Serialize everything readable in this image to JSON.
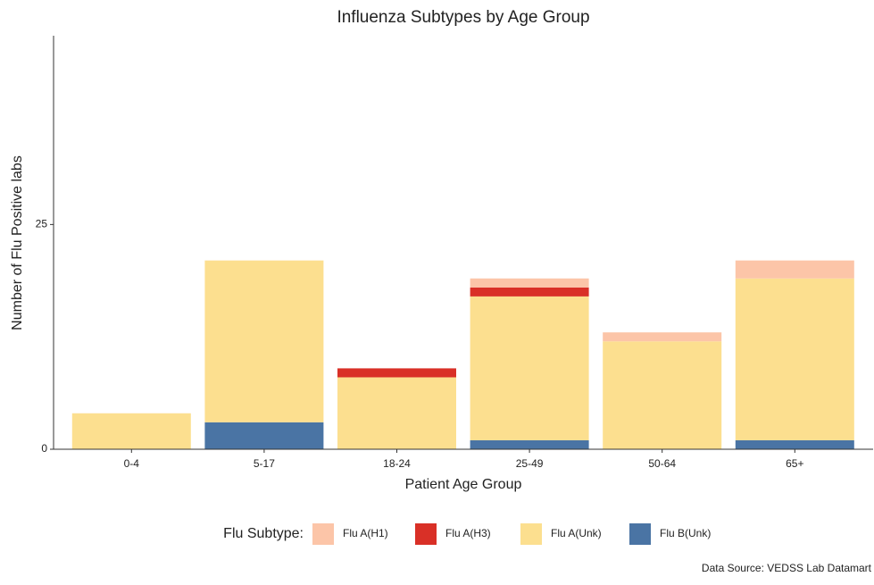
{
  "chart_data": {
    "type": "stacked_bar",
    "title": "Influenza Subtypes by Age Group",
    "x_label": "Patient Age Group",
    "y_label": "Number of Flu Positive labs",
    "categories": [
      "0-4",
      "5-17",
      "18-24",
      "25-49",
      "50-64",
      "65+"
    ],
    "series": [
      {
        "name": "Flu A(H1)",
        "color": "#fcc5a8",
        "values": [
          0,
          0,
          0,
          1,
          1,
          2
        ]
      },
      {
        "name": "Flu A(H3)",
        "color": "#d93027",
        "values": [
          0,
          0,
          1,
          1,
          0,
          0
        ]
      },
      {
        "name": "Flu A(Unk)",
        "color": "#fcdf8f",
        "values": [
          4,
          18,
          8,
          16,
          12,
          18
        ]
      },
      {
        "name": "Flu B(Unk)",
        "color": "#4a74a4",
        "values": [
          0,
          3,
          0,
          1,
          0,
          1
        ]
      }
    ],
    "ylim": [
      0,
      46
    ],
    "yticks": [
      0,
      25
    ],
    "legend_title": "Flu Subtype:",
    "legend_position": "bottom",
    "caption": "Data Source: VEDSS Lab Datamart"
  }
}
